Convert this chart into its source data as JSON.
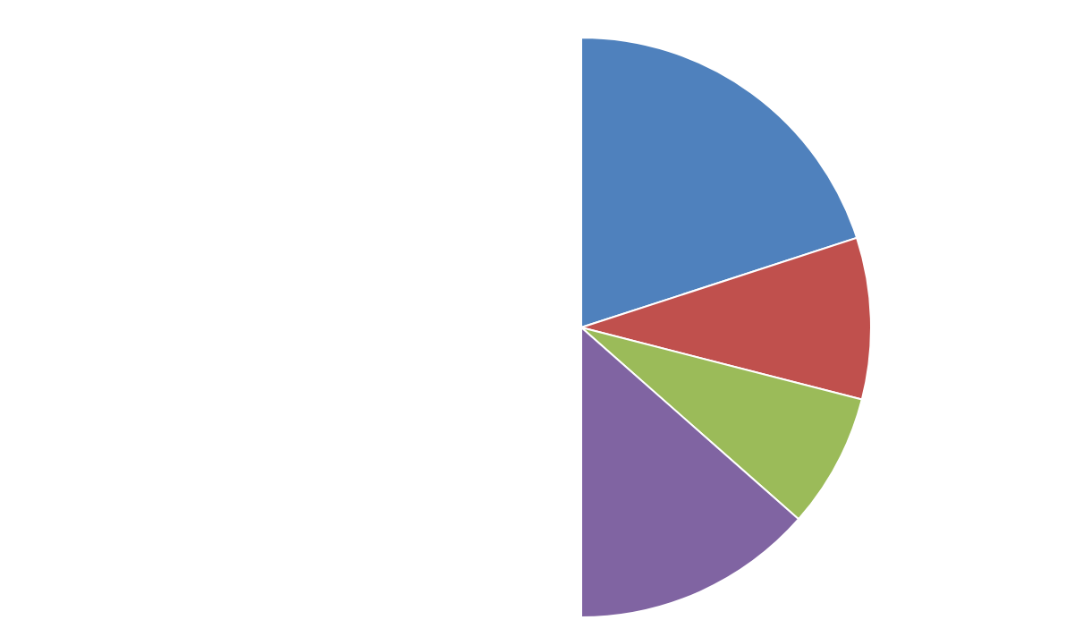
{
  "chart_data": {
    "type": "pie",
    "categories": [
      null,
      null,
      null,
      null
    ],
    "values": [
      40,
      18,
      15,
      27
    ],
    "colors": [
      "#4f81bd",
      "#c0504d",
      "#9bbb59",
      "#8064a2"
    ]
  }
}
